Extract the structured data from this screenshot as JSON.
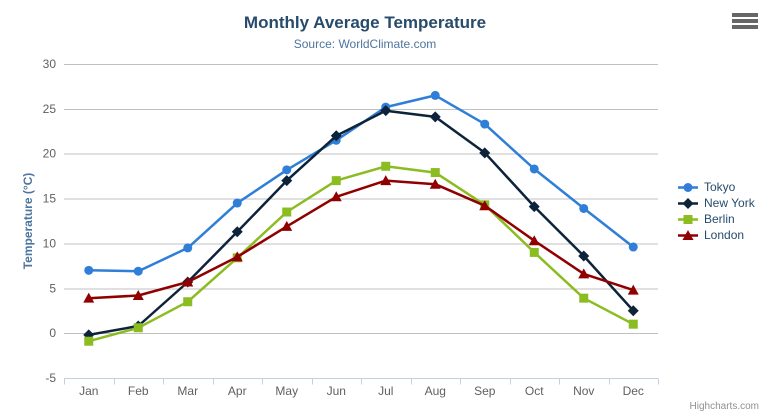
{
  "chart_data": {
    "type": "line",
    "title": "Monthly Average Temperature",
    "subtitle": "Source: WorldClimate.com",
    "xlabel": "",
    "ylabel": "Temperature (°C)",
    "categories": [
      "Jan",
      "Feb",
      "Mar",
      "Apr",
      "May",
      "Jun",
      "Jul",
      "Aug",
      "Sep",
      "Oct",
      "Nov",
      "Dec"
    ],
    "ylim": [
      -5,
      30
    ],
    "yticks": [
      -5,
      0,
      5,
      10,
      15,
      20,
      25,
      30
    ],
    "grid": true,
    "legend_position": "right",
    "series": [
      {
        "name": "Tokyo",
        "marker": "circle",
        "color": "#2f7ed8",
        "values": [
          7.0,
          6.9,
          9.5,
          14.5,
          18.2,
          21.5,
          25.2,
          26.5,
          23.3,
          18.3,
          13.9,
          9.6
        ]
      },
      {
        "name": "New York",
        "marker": "diamond",
        "color": "#0d233a",
        "values": [
          -0.2,
          0.8,
          5.7,
          11.3,
          17.0,
          22.0,
          24.8,
          24.1,
          20.1,
          14.1,
          8.6,
          2.5
        ]
      },
      {
        "name": "Berlin",
        "marker": "square",
        "color": "#8bbc21",
        "values": [
          -0.9,
          0.6,
          3.5,
          8.4,
          13.5,
          17.0,
          18.6,
          17.9,
          14.3,
          9.0,
          3.9,
          1.0
        ]
      },
      {
        "name": "London",
        "marker": "triangle",
        "color": "#910000",
        "values": [
          3.9,
          4.2,
          5.7,
          8.5,
          11.9,
          15.2,
          17.0,
          16.6,
          14.2,
          10.3,
          6.6,
          4.8
        ]
      }
    ]
  },
  "colors": {
    "title": "#274b6d",
    "subtitle": "#4d759e",
    "axis_title": "#4d759e",
    "axis_label": "#606060",
    "grid_line": "#c0c0c0",
    "axis_line": "#c0d0e0",
    "legend_text": "#274b6d",
    "credits_text": "#909090",
    "background": "#ffffff"
  },
  "credits": {
    "label": "Highcharts.com"
  }
}
